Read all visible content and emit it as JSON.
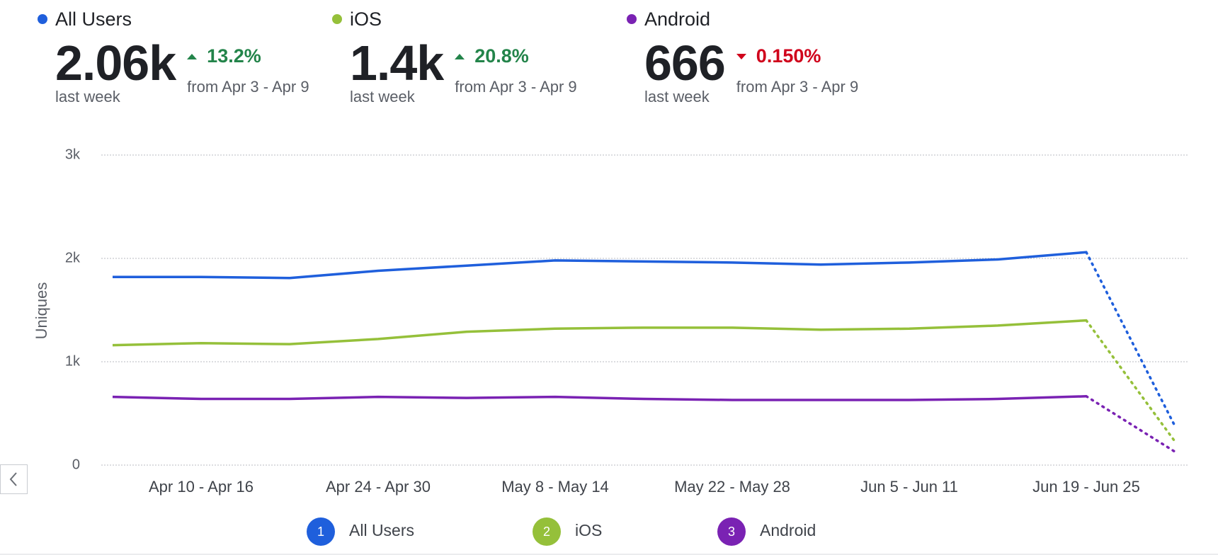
{
  "summary": [
    {
      "name": "All Users",
      "color": "#1f5fdc",
      "value": "2.06k",
      "period": "last week",
      "change": "13.2%",
      "direction": "up",
      "from": "from Apr 3 - Apr 9"
    },
    {
      "name": "iOS",
      "color": "#95c03a",
      "value": "1.4k",
      "period": "last week",
      "change": "20.8%",
      "direction": "up",
      "from": "from Apr 3 - Apr 9"
    },
    {
      "name": "Android",
      "color": "#7a22b3",
      "value": "666",
      "period": "last week",
      "change": "0.150%",
      "direction": "down",
      "from": "from Apr 3 - Apr 9"
    }
  ],
  "chart_data": {
    "type": "line",
    "ylabel": "Uniques",
    "categories": [
      null,
      "Apr 10 - Apr 16",
      null,
      "Apr 24 - Apr 30",
      null,
      "May 8 - May 14",
      null,
      "May 22 - May 28",
      null,
      "Jun 5 - Jun 11",
      null,
      "Jun 19 - Jun 25",
      null
    ],
    "series": [
      {
        "name": "All Users",
        "badge": "1",
        "color": "#1f5fdc",
        "values": [
          1820,
          1820,
          1810,
          1880,
          1930,
          1980,
          1970,
          1960,
          1940,
          1960,
          1990,
          2060,
          380
        ]
      },
      {
        "name": "iOS",
        "badge": "2",
        "color": "#95c03a",
        "values": [
          1160,
          1180,
          1170,
          1220,
          1290,
          1320,
          1330,
          1330,
          1310,
          1320,
          1350,
          1400,
          230
        ]
      },
      {
        "name": "Android",
        "badge": "3",
        "color": "#7a22b3",
        "values": [
          660,
          640,
          640,
          660,
          650,
          660,
          640,
          630,
          630,
          630,
          640,
          666,
          130
        ]
      }
    ],
    "incomplete_last_period": true,
    "ylim": [
      0,
      3000
    ],
    "yticks": [
      0,
      {
        "value": 1000,
        "label": "1k"
      },
      {
        "value": 2000,
        "label": "2k"
      },
      {
        "value": 3000,
        "label": "3k"
      }
    ],
    "grid": true
  }
}
